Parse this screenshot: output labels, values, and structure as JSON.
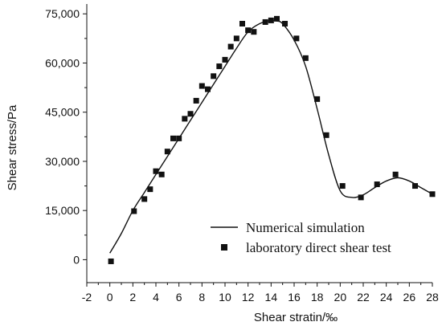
{
  "chart_data": {
    "type": "line",
    "title": "",
    "xlabel": "Shear stratin/‰",
    "ylabel": "Shear stress/Pa",
    "xlim": [
      -2,
      28
    ],
    "ylim": [
      -7000,
      78000
    ],
    "x_ticks": [
      -2,
      0,
      2,
      4,
      6,
      8,
      10,
      12,
      14,
      16,
      18,
      20,
      22,
      24,
      26,
      28
    ],
    "x_tick_labels": [
      "-2",
      "0",
      "2",
      "4",
      "6",
      "8",
      "10",
      "12",
      "14",
      "16",
      "18",
      "20",
      "22",
      "24",
      "26",
      "28"
    ],
    "y_ticks": [
      0,
      15000,
      30000,
      45000,
      60000,
      75000
    ],
    "y_tick_labels": [
      "0",
      "15,000",
      "30,000",
      "45,000",
      "60,000",
      "75,000"
    ],
    "grid": false,
    "legend_position": "bottom-right",
    "series": [
      {
        "name": "Numerical simulation",
        "kind": "line",
        "color": "#111111",
        "x": [
          0,
          1,
          2,
          3,
          4,
          5,
          6,
          7,
          8,
          9,
          10,
          11,
          12,
          13,
          14,
          14.5,
          15,
          16,
          17,
          18,
          19,
          20,
          21,
          22,
          23,
          24,
          25,
          26,
          27,
          28
        ],
        "y": [
          2000,
          8000,
          15000,
          20500,
          26000,
          31500,
          37000,
          42500,
          48000,
          53500,
          59000,
          64500,
          69500,
          72000,
          73000,
          72800,
          72000,
          67000,
          59000,
          46000,
          32000,
          21000,
          19000,
          19800,
          22000,
          24000,
          25000,
          24000,
          22000,
          20000
        ]
      },
      {
        "name": "laboratory direct shear test",
        "kind": "scatter",
        "color": "#111111",
        "x": [
          0.1,
          2.1,
          3.0,
          3.5,
          4.0,
          4.5,
          5.0,
          5.5,
          6.0,
          6.5,
          7.0,
          7.5,
          8.0,
          8.5,
          9.0,
          9.5,
          10.0,
          10.5,
          11.0,
          11.5,
          12.0,
          12.5,
          13.5,
          14.0,
          14.5,
          15.2,
          16.2,
          17.0,
          18.0,
          18.8,
          20.2,
          21.8,
          23.2,
          24.8,
          26.5,
          28.0
        ],
        "y": [
          -500,
          14800,
          18500,
          21500,
          27000,
          26000,
          33000,
          37000,
          37000,
          43000,
          44500,
          48500,
          53000,
          52000,
          56000,
          59000,
          61000,
          65000,
          67500,
          72000,
          70000,
          69500,
          72500,
          73000,
          73500,
          72000,
          67500,
          61500,
          49000,
          38000,
          22500,
          19000,
          23000,
          26000,
          22500,
          20000
        ]
      }
    ]
  }
}
